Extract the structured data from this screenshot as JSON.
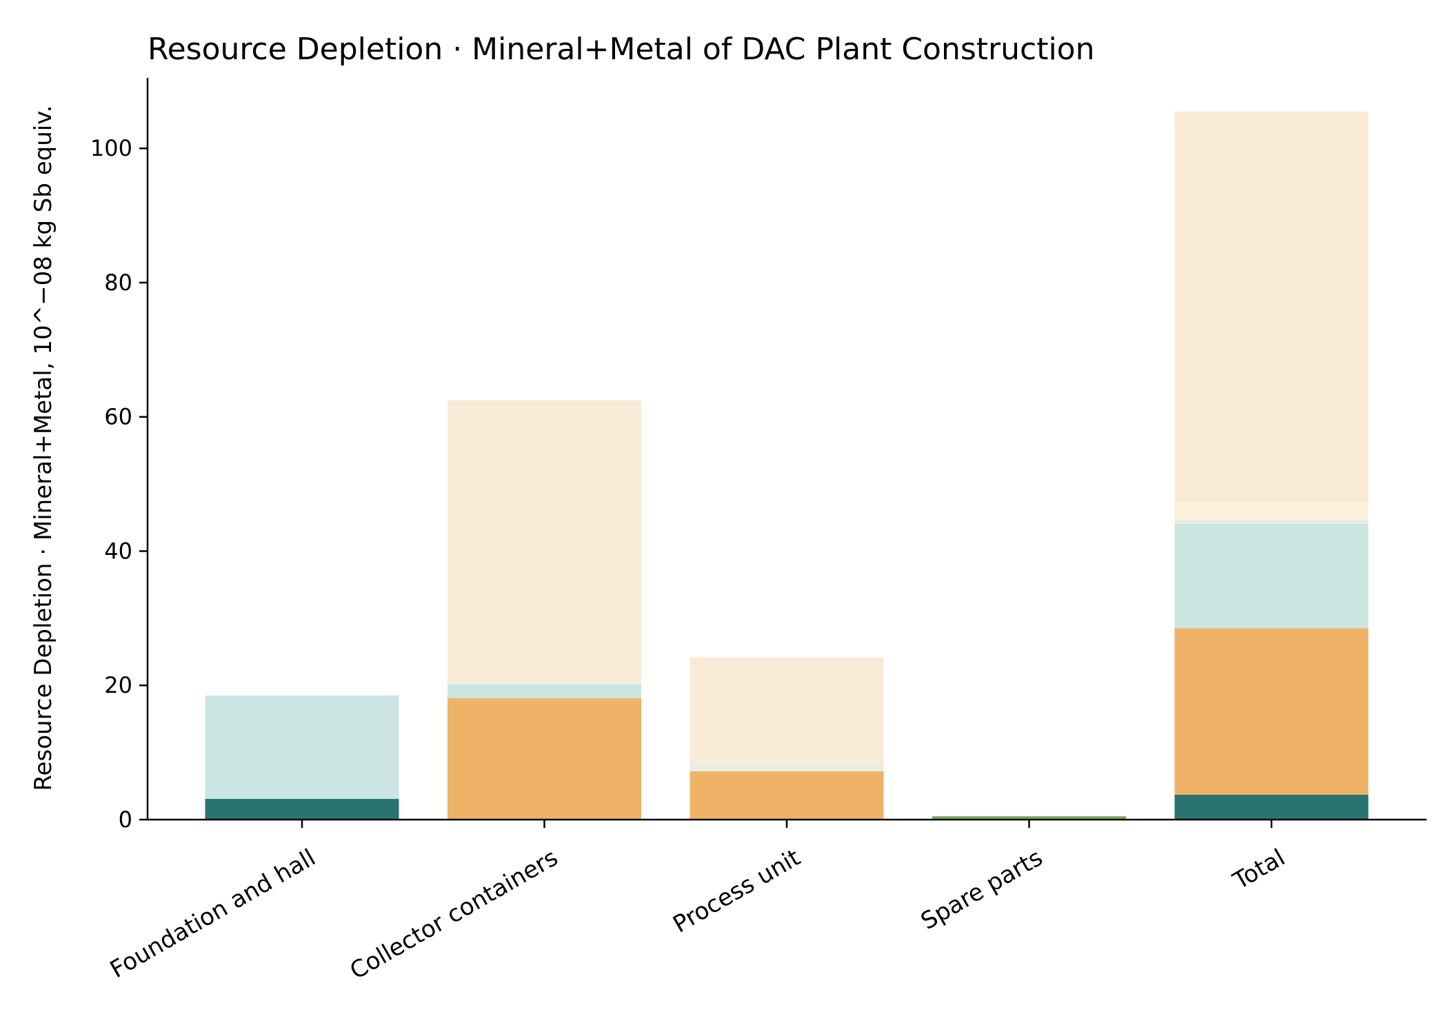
{
  "chart_data": {
    "type": "bar",
    "stacked": true,
    "title": "Resource Depletion · Mineral+Metal of DAC Plant Construction",
    "xlabel": "",
    "ylabel": "Resource Depletion · Mineral+Metal, 10^−08 kg Sb equiv.",
    "categories": [
      "Foundation and hall",
      "Collector containers",
      "Process unit",
      "Spare parts",
      "Total"
    ],
    "yticks": [
      0,
      20,
      40,
      60,
      80,
      100
    ],
    "ylim": [
      0,
      110.5
    ],
    "grid": false,
    "legend": "none",
    "series": [
      {
        "color": "#2a7370",
        "values": [
          3.1,
          0,
          0,
          0,
          3.7
        ]
      },
      {
        "color": "#7da55c",
        "values": [
          0,
          0,
          0,
          0.5,
          0
        ]
      },
      {
        "color": "#eeb366",
        "values": [
          0,
          18.1,
          7.2,
          0,
          24.8
        ]
      },
      {
        "color": "#cbe6e2",
        "values": [
          15.4,
          2.1,
          0,
          0,
          15.6
        ]
      },
      {
        "color": "#e8eedf",
        "values": [
          0,
          0,
          1.2,
          0,
          0.6
        ]
      },
      {
        "color": "#fbf0dc",
        "values": [
          0,
          0,
          0,
          0,
          2.6
        ]
      },
      {
        "color": "#faebd8",
        "values": [
          0,
          42.3,
          15.8,
          0,
          58.2
        ]
      }
    ]
  }
}
